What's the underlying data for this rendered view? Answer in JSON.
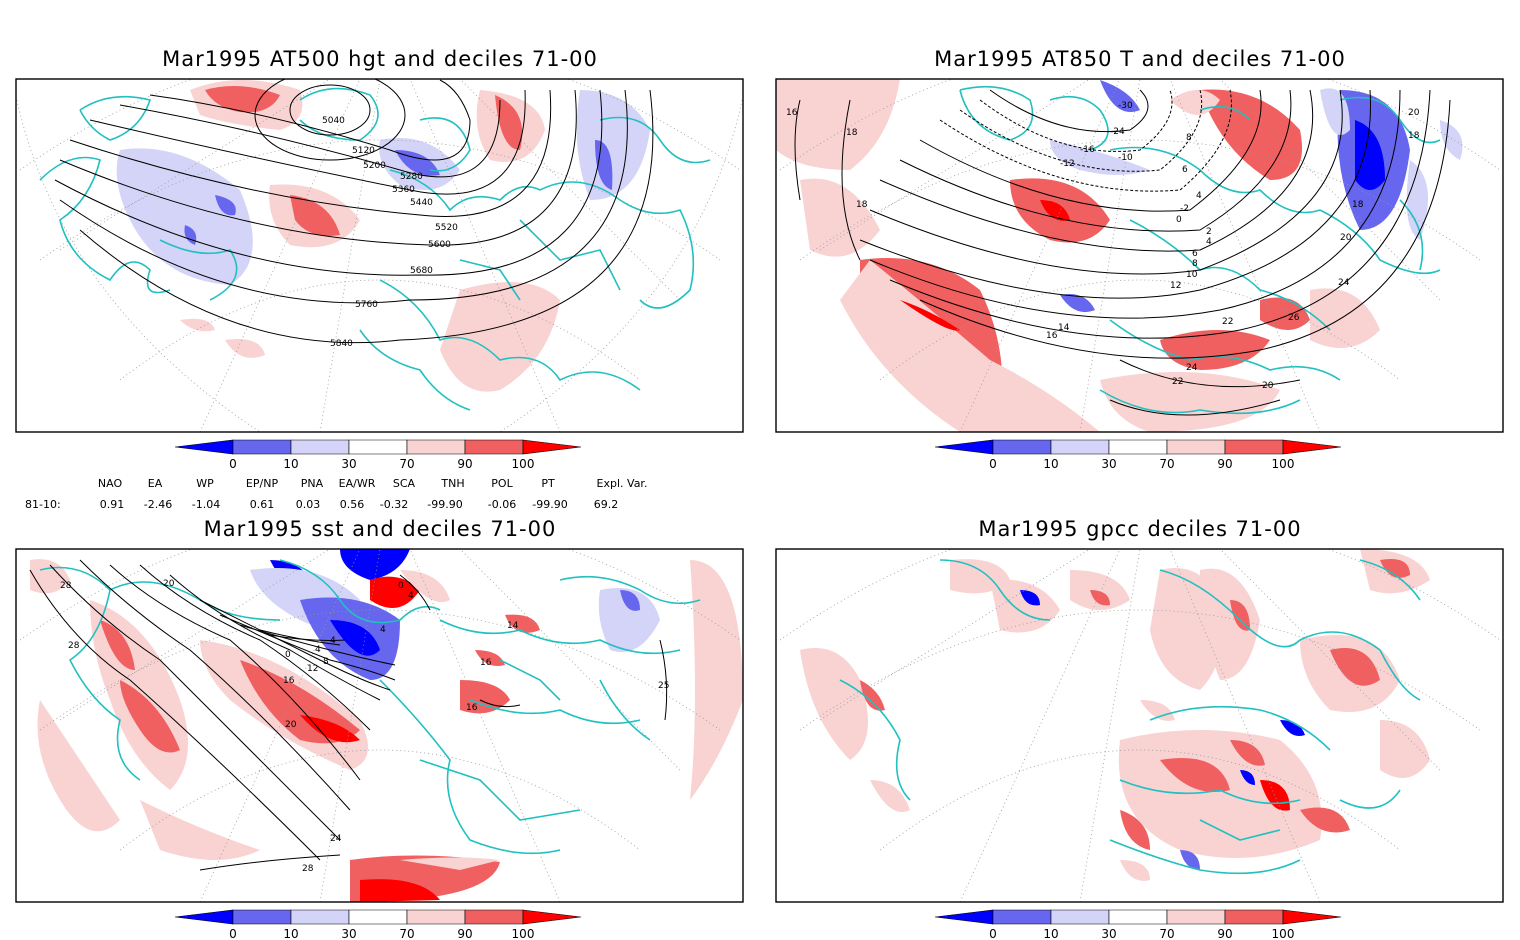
{
  "panels": [
    {
      "id": "hgt",
      "title": "Mar1995 AT500 hgt and deciles 71-00",
      "contour_labels": [
        "5040",
        "5120",
        "5200",
        "5280",
        "5360",
        "5440",
        "5520",
        "5600",
        "5680",
        "5760",
        "5840"
      ]
    },
    {
      "id": "t850",
      "title": "Mar1995 AT850 T and deciles 71-00",
      "contour_labels": [
        "16",
        "18",
        "18",
        "20",
        "24",
        "26",
        "22",
        "24",
        "22",
        "20",
        "18",
        "16",
        "14",
        "12",
        "10",
        "8",
        "6",
        "4",
        "2",
        "0",
        "-2",
        "4",
        "6",
        "8",
        "-10",
        "-12",
        "-16",
        "-24",
        "-30",
        "20",
        "18"
      ]
    },
    {
      "id": "sst",
      "title": "Mar1995 sst and deciles 71-00",
      "contour_labels": [
        "28",
        "28",
        "20",
        "16",
        "12",
        "8",
        "4",
        "0",
        "4",
        "16",
        "20",
        "24",
        "28",
        "0",
        "4",
        "4",
        "14",
        "16",
        "25"
      ]
    },
    {
      "id": "gpcc",
      "title": "Mar1995 gpcc deciles 71-00",
      "contour_labels": []
    }
  ],
  "colorbar": {
    "labels": [
      "0",
      "10",
      "30",
      "70",
      "90",
      "100"
    ],
    "colors": {
      "deep_blue": "#0000ff",
      "mid_blue": "#6666ee",
      "light_blue": "#d4d4f8",
      "white": "#ffffff",
      "light_red": "#f9d2d2",
      "mid_red": "#f06060",
      "deep_red": "#ff0000"
    }
  },
  "indices": {
    "headers": [
      "NAO",
      "EA",
      "WP",
      "EP/NP",
      "PNA",
      "EA/WR",
      "SCA",
      "TNH",
      "POL",
      "PT",
      "Expl. Var."
    ],
    "row_label": "81-10:",
    "values": [
      "0.91",
      "-2.46",
      "-1.04",
      "0.61",
      "0.03",
      "0.56",
      "-0.32",
      "-99.90",
      "-0.06",
      "-99.90",
      "69.2"
    ]
  },
  "colors": {
    "coastline": "#22c0c0",
    "frame": "#000000",
    "grid": "#999999"
  }
}
